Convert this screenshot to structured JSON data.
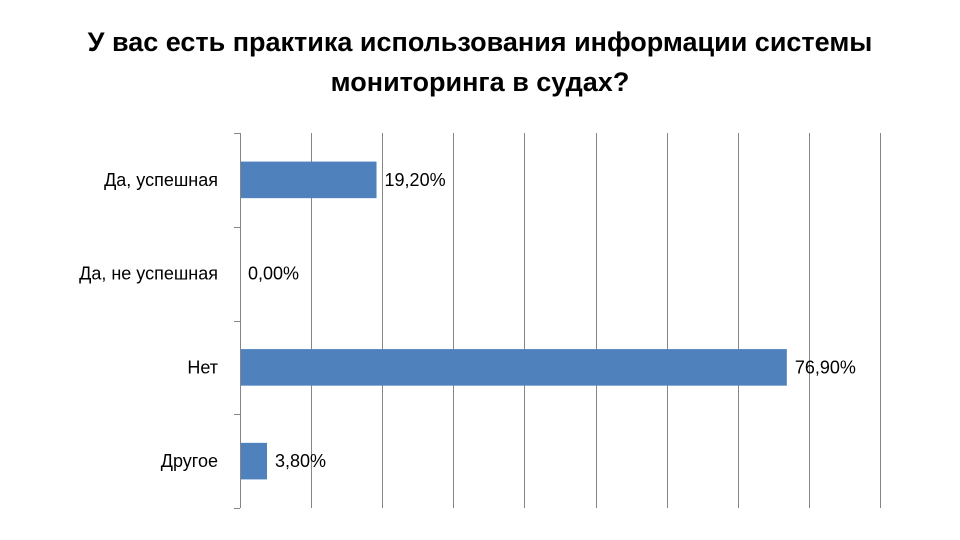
{
  "chart_data": {
    "type": "bar",
    "orientation": "horizontal",
    "title": "У вас есть практика использования информации системы мониторинга в судах?",
    "categories": [
      "Да, успешная",
      "Да, не успешная",
      "Нет",
      "Другое"
    ],
    "values": [
      19.2,
      0.0,
      76.9,
      3.8
    ],
    "value_labels": [
      "19,20%",
      "0,00%",
      "76,90%",
      "3,80%"
    ],
    "xlim": [
      0,
      90
    ],
    "x_gridline_step": 10,
    "xlabel": "",
    "ylabel": "",
    "grid": true,
    "legend": "none",
    "bar_color": "#4F81BD",
    "grid_color": "#868686"
  }
}
